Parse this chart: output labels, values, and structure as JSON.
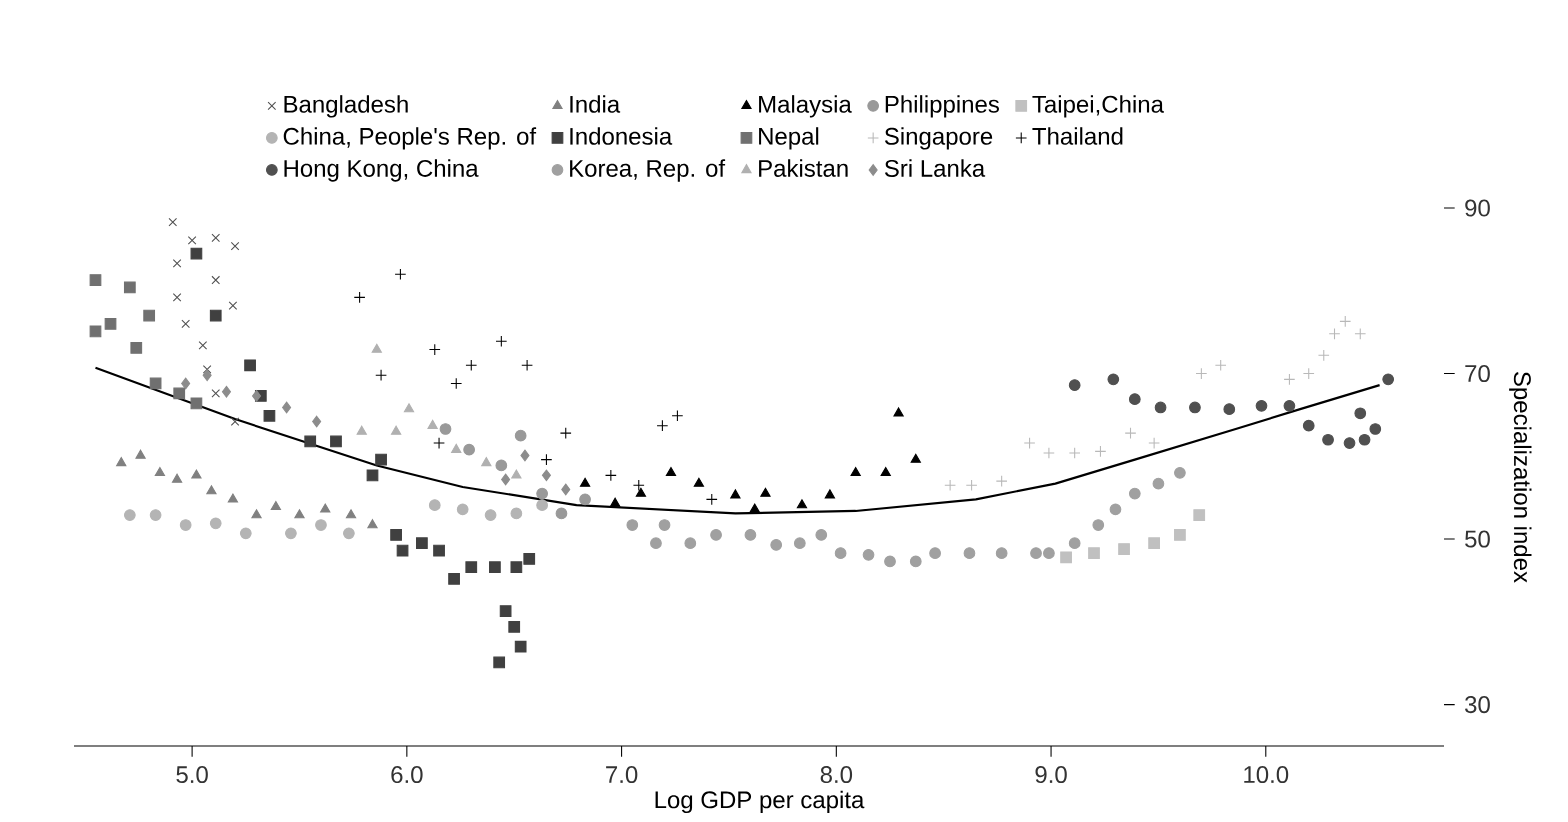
{
  "chart_data": {
    "type": "scatter",
    "xlabel": "Log GDP per capita",
    "ylabel": "Specialization index",
    "xlim": [
      4.45,
      10.83
    ],
    "ylim": [
      25,
      90
    ],
    "xticks": [
      {
        "value": 5,
        "label": "5.0"
      },
      {
        "value": 6,
        "label": "6.0"
      },
      {
        "value": 7,
        "label": "7.0"
      },
      {
        "value": 8,
        "label": "8.0"
      },
      {
        "value": 9,
        "label": "9.0"
      },
      {
        "value": 10,
        "label": "10.0"
      }
    ],
    "yticks": [
      30,
      50,
      70,
      90
    ],
    "legend": "top",
    "series": [
      {
        "name": "Bangladesh",
        "color": "#505050",
        "marker": "cross",
        "x": [
          4.91,
          5.0,
          5.11,
          5.2,
          4.93,
          5.11,
          4.93,
          5.19,
          4.97,
          5.05,
          5.07,
          5.11,
          5.2
        ],
        "values": [
          88.3,
          86.1,
          86.4,
          85.4,
          83.3,
          81.3,
          79.2,
          78.2,
          76.0,
          73.4,
          70.5,
          67.6,
          64.2
        ]
      },
      {
        "name": "China, People's Rep. of",
        "color": "#b4b4b4",
        "marker": "circle",
        "x": [
          4.71,
          4.83,
          4.97,
          5.11,
          5.25,
          5.46,
          5.6,
          5.73,
          6.13,
          6.26,
          6.39,
          6.51,
          6.63
        ],
        "values": [
          52.9,
          52.9,
          51.7,
          51.9,
          50.7,
          50.7,
          51.7,
          50.7,
          54.1,
          53.6,
          52.9,
          53.1,
          54.1
        ]
      },
      {
        "name": "Hong Kong, China",
        "color": "#505050",
        "marker": "circle",
        "x": [
          9.11,
          9.29,
          9.39,
          9.51,
          9.67,
          9.83,
          9.98,
          10.11,
          10.2,
          10.29,
          10.39,
          10.46,
          10.51,
          10.44,
          10.57
        ],
        "values": [
          68.6,
          69.3,
          66.9,
          65.9,
          65.9,
          65.7,
          66.1,
          66.1,
          63.7,
          62.0,
          61.6,
          62.0,
          63.3,
          65.2,
          69.3
        ]
      },
      {
        "name": "India",
        "color": "#808080",
        "marker": "triangle",
        "x": [
          4.67,
          4.76,
          4.85,
          4.93,
          5.02,
          5.09,
          5.19,
          5.3,
          5.39,
          5.5,
          5.62,
          5.74,
          5.84
        ],
        "values": [
          59.2,
          60.1,
          58.0,
          57.2,
          57.7,
          55.8,
          54.8,
          52.9,
          53.9,
          52.9,
          53.6,
          52.9,
          51.7
        ]
      },
      {
        "name": "Indonesia",
        "color": "#404040",
        "marker": "square",
        "x": [
          5.02,
          5.11,
          5.27,
          5.32,
          5.36,
          5.55,
          5.67,
          5.88,
          5.84,
          5.95,
          5.98,
          6.07,
          6.15,
          6.22,
          6.3,
          6.41,
          6.51,
          6.57,
          6.46,
          6.5,
          6.53,
          6.43
        ],
        "values": [
          84.5,
          77.0,
          71.0,
          67.3,
          64.9,
          61.8,
          61.8,
          59.6,
          57.7,
          50.5,
          48.6,
          49.5,
          48.6,
          45.2,
          46.6,
          46.6,
          46.6,
          47.6,
          41.3,
          39.4,
          37.0,
          35.1
        ]
      },
      {
        "name": "Korea, Rep. of",
        "color": "#a0a0a0",
        "marker": "circle",
        "x": [
          7.05,
          7.2,
          7.16,
          7.32,
          7.44,
          7.6,
          7.72,
          7.83,
          7.93,
          8.02,
          8.15,
          8.25,
          8.37,
          8.46,
          8.62,
          8.77,
          8.93,
          8.99,
          9.11,
          9.22,
          9.3,
          9.39,
          9.5,
          9.6
        ],
        "values": [
          51.7,
          51.7,
          49.5,
          49.5,
          50.5,
          50.5,
          49.3,
          49.5,
          50.5,
          48.3,
          48.1,
          47.3,
          47.3,
          48.3,
          48.3,
          48.3,
          48.3,
          48.3,
          49.5,
          51.7,
          53.6,
          55.5,
          56.7,
          58.0
        ]
      },
      {
        "name": "Malaysia",
        "color": "#000000",
        "marker": "triangle",
        "x": [
          6.83,
          6.97,
          7.09,
          7.23,
          7.36,
          7.53,
          7.67,
          7.62,
          7.84,
          7.97,
          8.09,
          8.23,
          8.37,
          8.29
        ],
        "values": [
          56.7,
          54.3,
          55.5,
          58.0,
          56.7,
          55.3,
          55.5,
          53.6,
          54.1,
          55.3,
          58.0,
          58.0,
          59.6,
          65.2
        ]
      },
      {
        "name": "Nepal",
        "color": "#707070",
        "marker": "square",
        "x": [
          4.55,
          4.71,
          4.8,
          4.62,
          4.55,
          4.74,
          4.83,
          4.94,
          5.02
        ],
        "values": [
          81.3,
          80.4,
          77.0,
          76.0,
          75.1,
          73.1,
          68.8,
          67.6,
          66.4
        ]
      },
      {
        "name": "Pakistan",
        "color": "#b0b0b0",
        "marker": "triangle",
        "x": [
          5.79,
          5.86,
          5.95,
          6.01,
          6.12,
          6.23,
          6.37,
          6.51
        ],
        "values": [
          63.0,
          72.9,
          63.0,
          65.7,
          63.7,
          60.8,
          59.2,
          57.7
        ]
      },
      {
        "name": "Philippines",
        "color": "#999999",
        "marker": "circle",
        "x": [
          6.18,
          6.29,
          6.44,
          6.53,
          6.63,
          6.72,
          6.83
        ],
        "values": [
          63.3,
          60.8,
          58.9,
          62.5,
          55.5,
          53.1,
          54.8
        ]
      },
      {
        "name": "Singapore",
        "color": "#b8b8b8",
        "x": [
          8.53,
          8.63,
          8.77,
          8.9,
          8.99,
          9.11,
          9.23,
          9.37,
          9.48,
          9.7,
          9.79,
          10.11,
          10.2,
          10.27,
          10.32,
          10.37,
          10.44
        ],
        "values": [
          56.5,
          56.5,
          57.0,
          61.6,
          60.4,
          60.4,
          60.6,
          62.8,
          61.6,
          70.0,
          71.0,
          69.3,
          70.0,
          72.2,
          74.8,
          76.3,
          74.8
        ]
      },
      {
        "name": "Sri Lanka",
        "color": "#8c8c8c",
        "marker": "diamond",
        "x": [
          4.97,
          5.07,
          5.16,
          5.3,
          5.44,
          5.58,
          6.46,
          6.55,
          6.65,
          6.74
        ],
        "values": [
          68.8,
          69.8,
          67.8,
          67.3,
          65.9,
          64.2,
          57.2,
          60.1,
          57.7,
          56.0
        ]
      },
      {
        "name": "Taipei,China",
        "color": "#c0c0c0",
        "marker": "square",
        "x": [
          9.07,
          9.2,
          9.34,
          9.48,
          9.6,
          9.69
        ],
        "values": [
          47.8,
          48.3,
          48.8,
          49.5,
          50.5,
          52.9
        ]
      },
      {
        "name": "Thailand",
        "color": "#000000",
        "x": [
          5.78,
          5.97,
          5.88,
          6.13,
          6.23,
          6.3,
          6.44,
          6.56,
          6.15,
          6.65,
          6.74,
          7.19,
          7.26,
          6.95,
          7.08,
          7.42
        ],
        "values": [
          79.2,
          82.0,
          69.8,
          72.9,
          68.8,
          71.0,
          73.9,
          71.0,
          61.6,
          59.6,
          62.8,
          63.7,
          64.9,
          57.7,
          56.5,
          54.8
        ]
      },
      {
        "type": "line",
        "color": "#000000",
        "marker": "none",
        "x": [
          4.55,
          5.2,
          5.86,
          6.26,
          6.79,
          7.53,
          8.09,
          8.65,
          9.02,
          9.39,
          9.86,
          10.16,
          10.53
        ],
        "values": [
          70.7,
          64.5,
          58.9,
          56.3,
          54.1,
          53.1,
          53.4,
          54.8,
          56.7,
          59.6,
          63.3,
          65.7,
          68.6
        ]
      }
    ]
  }
}
